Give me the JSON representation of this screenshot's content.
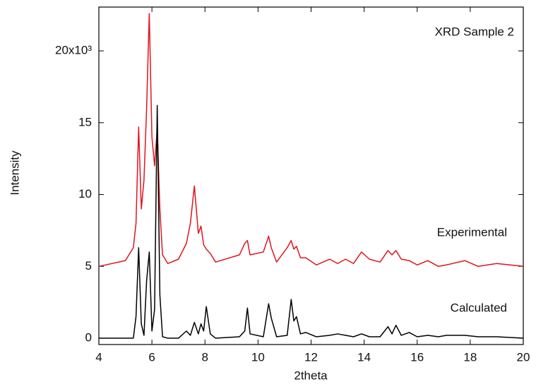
{
  "chart_data": {
    "type": "line",
    "title": "XRD Sample 2",
    "xlabel": "2theta",
    "ylabel": "Intensity",
    "x": [
      4.0,
      5.0,
      5.3,
      5.4,
      5.5,
      5.6,
      5.7,
      5.8,
      5.9,
      6.0,
      6.1,
      6.2,
      6.3,
      6.4,
      6.6,
      7.0,
      7.3,
      7.45,
      7.6,
      7.75,
      7.85,
      7.95,
      8.05,
      8.2,
      8.4,
      9.3,
      9.5,
      9.6,
      9.7,
      10.2,
      10.4,
      10.5,
      10.7,
      11.1,
      11.25,
      11.35,
      11.45,
      11.6,
      11.8,
      12.2,
      12.7,
      13.0,
      13.3,
      13.6,
      13.9,
      14.2,
      14.6,
      14.9,
      15.05,
      15.2,
      15.4,
      15.7,
      16.0,
      16.4,
      16.8,
      17.1,
      17.8,
      18.3,
      19.0,
      20.0
    ],
    "series": [
      {
        "name": "Experimental",
        "color": "#e0141e",
        "values": [
          5.0,
          5.4,
          6.3,
          8,
          14.7,
          9,
          11,
          16,
          22.6,
          14,
          12,
          14.6,
          9,
          5.8,
          5.2,
          5.5,
          6.6,
          8,
          10.6,
          7.3,
          7.8,
          6.5,
          6.2,
          5.9,
          5.3,
          5.8,
          6.6,
          6.8,
          5.8,
          6,
          7.1,
          6.3,
          5.3,
          6.3,
          6.8,
          6.2,
          6.4,
          5.6,
          5.6,
          5.1,
          5.5,
          5.2,
          5.5,
          5.2,
          6.0,
          5.5,
          5.3,
          6.1,
          5.8,
          6.1,
          5.5,
          5.4,
          5.1,
          5.4,
          5.0,
          5.1,
          5.4,
          5.0,
          5.2,
          5.0
        ]
      },
      {
        "name": "Calculated",
        "color": "#000000",
        "values": [
          0,
          0,
          0,
          1.5,
          6.3,
          1.0,
          0.2,
          4,
          6.0,
          0.5,
          2,
          16.2,
          3,
          0.1,
          0,
          0,
          0.5,
          0.2,
          1.1,
          0.3,
          1.0,
          0.5,
          2.2,
          0.3,
          0,
          0.1,
          0.5,
          2.1,
          0.3,
          0.1,
          2.4,
          1.4,
          0.1,
          0.2,
          2.7,
          1.2,
          1.5,
          0.3,
          0.4,
          0.1,
          0.2,
          0.3,
          0.2,
          0.1,
          0.3,
          0.1,
          0.1,
          0.8,
          0.3,
          0.9,
          0.2,
          0.4,
          0.1,
          0.2,
          0.1,
          0.2,
          0.2,
          0.1,
          0.1,
          0
        ]
      }
    ],
    "xlim": [
      4,
      20
    ],
    "xticks": [
      4,
      6,
      8,
      10,
      12,
      14,
      16,
      18,
      20
    ],
    "ylim": [
      -0.44,
      23.05
    ],
    "yticks": [
      0,
      5,
      10,
      15,
      {
        "value": 20,
        "label": "20x10³"
      }
    ],
    "grid": false
  }
}
